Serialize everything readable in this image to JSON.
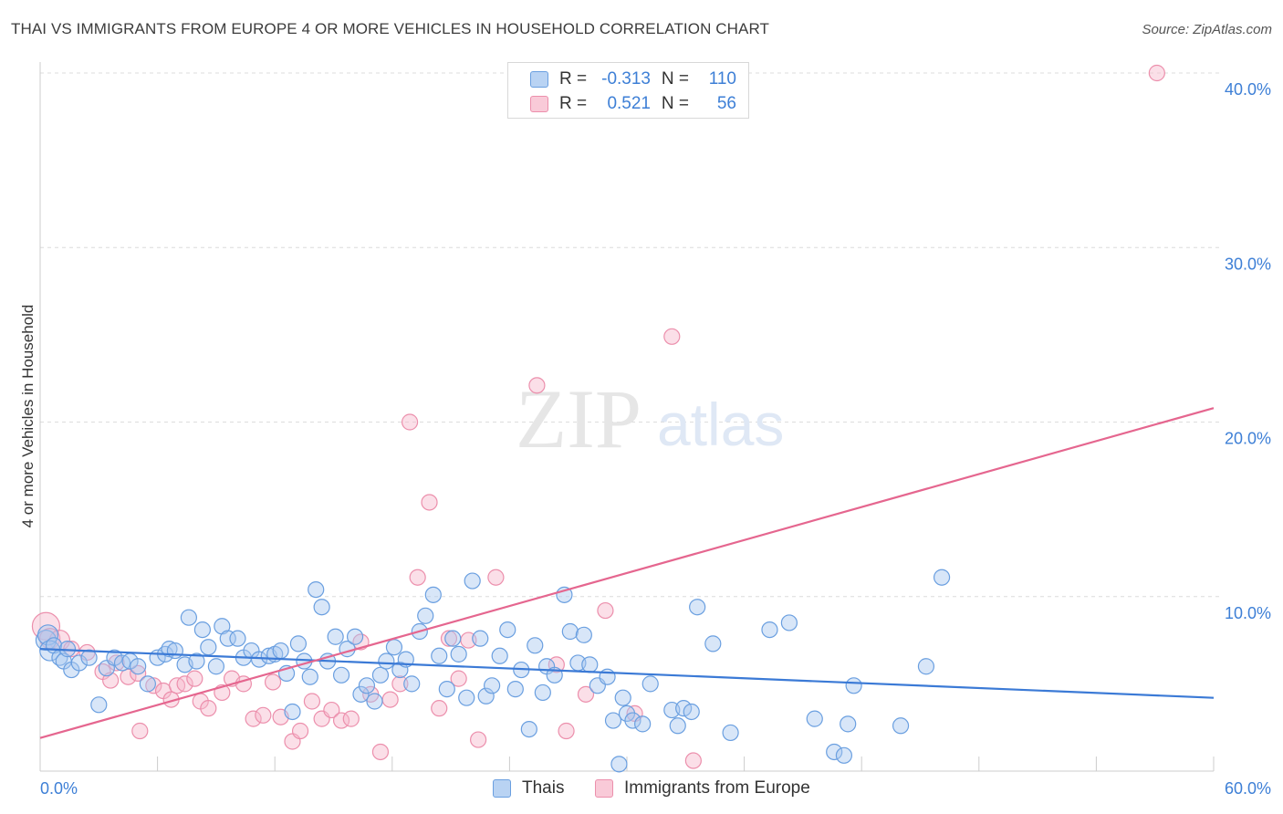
{
  "title": "THAI VS IMMIGRANTS FROM EUROPE 4 OR MORE VEHICLES IN HOUSEHOLD CORRELATION CHART",
  "source": "Source: ZipAtlas.com",
  "watermark": {
    "zip": "ZIP",
    "atlas": "atlas"
  },
  "legend_top": [
    {
      "r_label": "R =",
      "r_value": "-0.313",
      "n_label": "N =",
      "n_value": "110"
    },
    {
      "r_label": "R =",
      "r_value": "0.521",
      "n_label": "N =",
      "n_value": "56"
    }
  ],
  "legend_bottom": [
    "Thais",
    "Immigrants from Europe"
  ],
  "chart_data": {
    "type": "scatter",
    "title": "THAI VS IMMIGRANTS FROM EUROPE 4 OR MORE VEHICLES IN HOUSEHOLD CORRELATION CHART",
    "xlabel": "",
    "ylabel": "4 or more Vehicles in Household",
    "xlim": [
      0,
      60
    ],
    "ylim": [
      0,
      40
    ],
    "x_tick_labels": [
      "0.0%",
      "60.0%"
    ],
    "y_ticks": [
      10,
      20,
      30,
      40
    ],
    "y_tick_labels": [
      "10.0%",
      "20.0%",
      "30.0%",
      "40.0%"
    ],
    "grid": "horizontal dashed",
    "legend_position": "top-center",
    "colors": {
      "thais_fill": "#a9c8f0",
      "thais_stroke": "#6a9fe0",
      "thais_line": "#3b7ad6",
      "europe_fill": "#f6b9cc",
      "europe_stroke": "#ec8fac",
      "europe_line": "#e5668f",
      "accent_text": "#3d7fd6",
      "grid": "#dcdcdc",
      "axis": "#cccccc"
    },
    "series": [
      {
        "name": "Thais",
        "r": -0.313,
        "n": 110,
        "trend": {
          "x": [
            0,
            60
          ],
          "y": [
            7.0,
            4.2
          ]
        },
        "points": [
          [
            0.3,
            7.5
          ],
          [
            0.4,
            7.8
          ],
          [
            0.5,
            6.9
          ],
          [
            0.7,
            7.2
          ],
          [
            1.0,
            6.5
          ],
          [
            1.2,
            6.3
          ],
          [
            1.4,
            7.0
          ],
          [
            1.6,
            5.8
          ],
          [
            2.0,
            6.2
          ],
          [
            2.5,
            6.5
          ],
          [
            3.0,
            3.8
          ],
          [
            3.4,
            5.9
          ],
          [
            3.8,
            6.5
          ],
          [
            4.2,
            6.2
          ],
          [
            4.6,
            6.3
          ],
          [
            5.0,
            6.0
          ],
          [
            5.5,
            5.0
          ],
          [
            6.0,
            6.5
          ],
          [
            6.4,
            6.7
          ],
          [
            6.6,
            7.0
          ],
          [
            6.9,
            6.9
          ],
          [
            7.4,
            6.1
          ],
          [
            7.6,
            8.8
          ],
          [
            8.0,
            6.3
          ],
          [
            8.3,
            8.1
          ],
          [
            8.6,
            7.1
          ],
          [
            9.0,
            6.0
          ],
          [
            9.3,
            8.3
          ],
          [
            9.6,
            7.6
          ],
          [
            10.1,
            7.6
          ],
          [
            10.4,
            6.5
          ],
          [
            10.8,
            6.9
          ],
          [
            11.2,
            6.4
          ],
          [
            11.7,
            6.6
          ],
          [
            12.0,
            6.7
          ],
          [
            12.3,
            6.9
          ],
          [
            12.6,
            5.6
          ],
          [
            12.9,
            3.4
          ],
          [
            13.2,
            7.3
          ],
          [
            13.5,
            6.3
          ],
          [
            13.8,
            5.4
          ],
          [
            14.1,
            10.4
          ],
          [
            14.4,
            9.4
          ],
          [
            14.7,
            6.3
          ],
          [
            15.1,
            7.7
          ],
          [
            15.4,
            5.5
          ],
          [
            15.7,
            7.0
          ],
          [
            16.1,
            7.7
          ],
          [
            16.4,
            4.4
          ],
          [
            16.7,
            4.9
          ],
          [
            17.1,
            4.0
          ],
          [
            17.4,
            5.5
          ],
          [
            17.7,
            6.3
          ],
          [
            18.1,
            7.1
          ],
          [
            18.4,
            5.8
          ],
          [
            18.7,
            6.4
          ],
          [
            19.0,
            5.0
          ],
          [
            19.4,
            8.0
          ],
          [
            19.7,
            8.9
          ],
          [
            20.1,
            10.1
          ],
          [
            20.4,
            6.6
          ],
          [
            20.8,
            4.7
          ],
          [
            21.1,
            7.6
          ],
          [
            21.4,
            6.7
          ],
          [
            21.8,
            4.2
          ],
          [
            22.1,
            10.9
          ],
          [
            22.5,
            7.6
          ],
          [
            22.8,
            4.3
          ],
          [
            23.1,
            4.9
          ],
          [
            23.5,
            6.6
          ],
          [
            23.9,
            8.1
          ],
          [
            24.3,
            4.7
          ],
          [
            24.6,
            5.8
          ],
          [
            25.0,
            2.4
          ],
          [
            25.3,
            7.2
          ],
          [
            25.7,
            4.5
          ],
          [
            25.9,
            6.0
          ],
          [
            26.3,
            5.5
          ],
          [
            26.8,
            10.1
          ],
          [
            27.1,
            8.0
          ],
          [
            27.5,
            6.2
          ],
          [
            27.8,
            7.8
          ],
          [
            28.1,
            6.1
          ],
          [
            28.5,
            4.9
          ],
          [
            29.0,
            5.4
          ],
          [
            29.3,
            2.9
          ],
          [
            29.6,
            0.4
          ],
          [
            29.8,
            4.2
          ],
          [
            30.0,
            3.3
          ],
          [
            30.3,
            2.9
          ],
          [
            30.8,
            2.7
          ],
          [
            31.2,
            5.0
          ],
          [
            32.3,
            3.5
          ],
          [
            32.6,
            2.6
          ],
          [
            32.9,
            3.6
          ],
          [
            33.3,
            3.4
          ],
          [
            33.6,
            9.4
          ],
          [
            34.4,
            7.3
          ],
          [
            35.3,
            2.2
          ],
          [
            37.3,
            8.1
          ],
          [
            38.3,
            8.5
          ],
          [
            39.6,
            3.0
          ],
          [
            40.6,
            1.1
          ],
          [
            41.1,
            0.9
          ],
          [
            41.3,
            2.7
          ],
          [
            41.6,
            4.9
          ],
          [
            44.0,
            2.6
          ],
          [
            45.3,
            6.0
          ],
          [
            46.1,
            11.1
          ]
        ]
      },
      {
        "name": "Immigrants from Europe",
        "r": 0.521,
        "n": 56,
        "trend": {
          "x": [
            0,
            60
          ],
          "y": [
            1.9,
            20.8
          ]
        },
        "points": [
          [
            0.3,
            8.3
          ],
          [
            0.5,
            7.6
          ],
          [
            1.0,
            7.5
          ],
          [
            1.6,
            7.0
          ],
          [
            2.4,
            6.8
          ],
          [
            3.2,
            5.7
          ],
          [
            3.6,
            5.2
          ],
          [
            3.9,
            6.2
          ],
          [
            4.5,
            5.4
          ],
          [
            5.0,
            5.6
          ],
          [
            5.1,
            2.3
          ],
          [
            5.8,
            4.9
          ],
          [
            6.3,
            4.6
          ],
          [
            6.7,
            4.1
          ],
          [
            7.0,
            4.9
          ],
          [
            7.4,
            5.0
          ],
          [
            7.9,
            5.3
          ],
          [
            8.2,
            4.0
          ],
          [
            8.6,
            3.6
          ],
          [
            9.3,
            4.5
          ],
          [
            9.8,
            5.3
          ],
          [
            10.4,
            5.0
          ],
          [
            10.9,
            3.0
          ],
          [
            11.4,
            3.2
          ],
          [
            11.9,
            5.1
          ],
          [
            12.3,
            3.1
          ],
          [
            12.9,
            1.7
          ],
          [
            13.3,
            2.3
          ],
          [
            13.9,
            4.0
          ],
          [
            14.4,
            3.0
          ],
          [
            14.9,
            3.5
          ],
          [
            15.4,
            2.9
          ],
          [
            15.9,
            3.0
          ],
          [
            16.4,
            7.4
          ],
          [
            16.9,
            4.4
          ],
          [
            17.4,
            1.1
          ],
          [
            17.9,
            4.1
          ],
          [
            18.4,
            5.0
          ],
          [
            18.9,
            20.0
          ],
          [
            19.3,
            11.1
          ],
          [
            19.9,
            15.4
          ],
          [
            20.4,
            3.6
          ],
          [
            20.9,
            7.6
          ],
          [
            21.4,
            5.3
          ],
          [
            21.9,
            7.5
          ],
          [
            22.4,
            1.8
          ],
          [
            23.3,
            11.1
          ],
          [
            25.4,
            22.1
          ],
          [
            26.4,
            6.1
          ],
          [
            26.9,
            2.3
          ],
          [
            27.9,
            4.4
          ],
          [
            28.9,
            9.2
          ],
          [
            30.4,
            3.3
          ],
          [
            32.3,
            24.9
          ],
          [
            33.4,
            0.6
          ],
          [
            57.1,
            40.0
          ]
        ]
      }
    ]
  }
}
